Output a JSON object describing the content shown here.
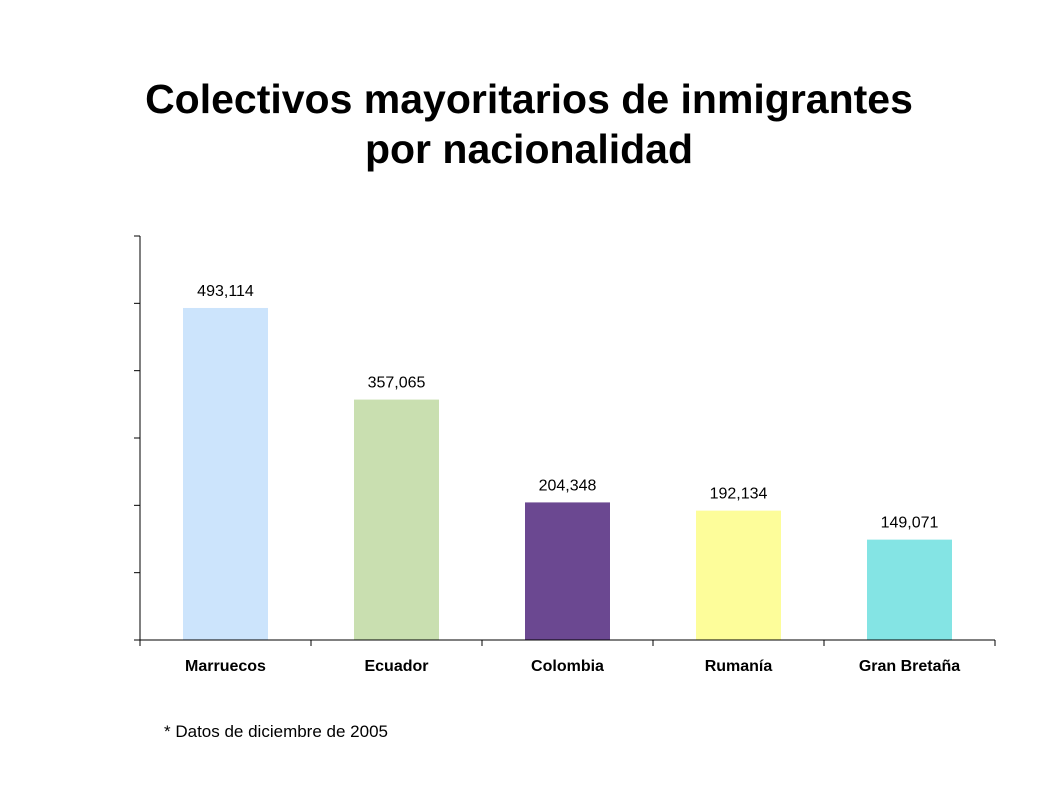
{
  "chart_data": {
    "type": "bar",
    "title_lines": [
      "Colectivos mayoritarios de inmigrantes",
      "por nacionalidad"
    ],
    "categories": [
      "Marruecos",
      "Ecuador",
      "Colombia",
      "Rumanía",
      "Gran Bretaña"
    ],
    "values": [
      493114,
      357065,
      204348,
      192134,
      149071
    ],
    "value_labels": [
      "493,114",
      "357,065",
      "204,348",
      "192,134",
      "149,071"
    ],
    "colors": [
      "#cce4fc",
      "#c9dfb0",
      "#6b4891",
      "#fdfd9a",
      "#84e4e4"
    ],
    "ylim": [
      0,
      600000
    ],
    "ytick_step": 100000,
    "ytick_labels_shown": false,
    "grid": false,
    "legend": "none"
  },
  "footnote": "*  Datos de diciembre de 2005"
}
